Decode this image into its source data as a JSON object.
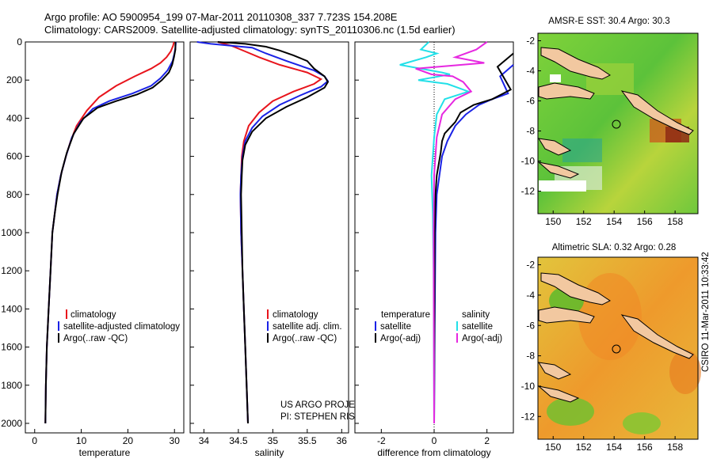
{
  "figure": {
    "title_line1": "Argo profile: AO 5900954_199 07-Mar-2011 20110308_337 7.723S 154.208E",
    "title_line2": "Climatology: CARS2009. Satellite-adjusted climatology: synTS_20110306.nc (1.5d earlier)",
    "credit_line1": "US ARGO PROJECT",
    "credit_line2": "PI: STEPHEN RISER",
    "timestamp": "CSIRO 11-Mar-2011 10:33:42"
  },
  "colors": {
    "climatology": "#e8141c",
    "satellite": "#1a22e6",
    "argo": "#000000",
    "salinity_satellite": "#22e0e8",
    "salinity_argo": "#e628e0"
  },
  "chart_data": [
    {
      "type": "line",
      "id": "temperature",
      "xlabel": "temperature",
      "ylabel": "depth",
      "xlim": [
        -2,
        32
      ],
      "ylim": [
        2050,
        0
      ],
      "xticks": [
        0,
        10,
        20,
        30
      ],
      "yticks": [
        0,
        200,
        400,
        600,
        800,
        1000,
        1200,
        1400,
        1600,
        1800,
        2000
      ],
      "legend": [
        "climatology",
        "satellite-adjusted climatology",
        "Argo(..raw -QC)"
      ],
      "series": [
        {
          "name": "climatology",
          "color": "climatology",
          "points": [
            [
              29.9,
              0
            ],
            [
              29.7,
              20
            ],
            [
              29.2,
              50
            ],
            [
              28.3,
              80
            ],
            [
              27.0,
              110
            ],
            [
              25.0,
              140
            ],
            [
              21.5,
              180
            ],
            [
              17.5,
              230
            ],
            [
              13.8,
              290
            ],
            [
              11.2,
              360
            ],
            [
              9.0,
              440
            ],
            [
              7.7,
              520
            ],
            [
              6.7,
              600
            ],
            [
              5.6,
              700
            ],
            [
              4.8,
              800
            ],
            [
              4.3,
              900
            ],
            [
              3.8,
              1000
            ],
            [
              3.4,
              1200
            ],
            [
              3.0,
              1400
            ],
            [
              2.6,
              1600
            ],
            [
              2.4,
              1800
            ],
            [
              2.3,
              2000
            ]
          ]
        },
        {
          "name": "satellite-adjusted climatology",
          "color": "satellite",
          "points": [
            [
              30.3,
              0
            ],
            [
              30.2,
              30
            ],
            [
              30.0,
              60
            ],
            [
              29.6,
              100
            ],
            [
              28.5,
              150
            ],
            [
              27.0,
              190
            ],
            [
              25.0,
              230
            ],
            [
              21.0,
              270
            ],
            [
              16.0,
              310
            ],
            [
              12.5,
              350
            ],
            [
              9.8,
              420
            ],
            [
              8.0,
              500
            ],
            [
              6.7,
              600
            ],
            [
              5.6,
              700
            ],
            [
              4.8,
              800
            ],
            [
              4.3,
              900
            ],
            [
              3.8,
              1000
            ],
            [
              3.4,
              1200
            ],
            [
              3.0,
              1400
            ],
            [
              2.6,
              1600
            ],
            [
              2.4,
              1800
            ],
            [
              2.3,
              2000
            ]
          ]
        },
        {
          "name": "Argo(..raw -QC)",
          "color": "argo",
          "points": [
            [
              30.2,
              0
            ],
            [
              30.2,
              40
            ],
            [
              29.9,
              80
            ],
            [
              29.5,
              120
            ],
            [
              28.8,
              160
            ],
            [
              27.3,
              200
            ],
            [
              25.3,
              240
            ],
            [
              22.0,
              275
            ],
            [
              17.5,
              310
            ],
            [
              13.5,
              345
            ],
            [
              10.5,
              400
            ],
            [
              8.4,
              480
            ],
            [
              6.9,
              580
            ],
            [
              5.8,
              680
            ],
            [
              4.9,
              800
            ],
            [
              4.3,
              900
            ],
            [
              3.8,
              1000
            ],
            [
              3.4,
              1200
            ],
            [
              3.0,
              1400
            ],
            [
              2.6,
              1600
            ],
            [
              2.4,
              1800
            ],
            [
              2.3,
              2000
            ]
          ]
        }
      ]
    },
    {
      "type": "line",
      "id": "salinity",
      "xlabel": "salinity",
      "ylabel": "depth",
      "xlim": [
        33.8,
        36.1
      ],
      "ylim": [
        2050,
        0
      ],
      "xticks": [
        34,
        34.5,
        35,
        35.5,
        36
      ],
      "legend": [
        "climatology",
        "satellite adj. clim.",
        "Argo(..raw -QC)"
      ],
      "series": [
        {
          "name": "climatology",
          "color": "climatology",
          "points": [
            [
              34.2,
              0
            ],
            [
              34.4,
              20
            ],
            [
              34.6,
              50
            ],
            [
              34.8,
              80
            ],
            [
              35.1,
              120
            ],
            [
              35.5,
              160
            ],
            [
              35.7,
              195
            ],
            [
              35.6,
              220
            ],
            [
              35.3,
              260
            ],
            [
              35.0,
              310
            ],
            [
              34.8,
              370
            ],
            [
              34.65,
              440
            ],
            [
              34.58,
              520
            ],
            [
              34.55,
              600
            ],
            [
              34.54,
              700
            ],
            [
              34.53,
              800
            ],
            [
              34.54,
              1000
            ],
            [
              34.56,
              1200
            ],
            [
              34.58,
              1400
            ],
            [
              34.6,
              1600
            ],
            [
              34.62,
              1800
            ],
            [
              34.64,
              2000
            ]
          ]
        },
        {
          "name": "satellite adj. clim.",
          "color": "satellite",
          "points": [
            [
              33.9,
              0
            ],
            [
              34.1,
              10
            ],
            [
              34.7,
              30
            ],
            [
              34.9,
              60
            ],
            [
              35.2,
              100
            ],
            [
              35.6,
              150
            ],
            [
              35.75,
              180
            ],
            [
              35.8,
              205
            ],
            [
              35.7,
              235
            ],
            [
              35.4,
              280
            ],
            [
              35.1,
              330
            ],
            [
              34.85,
              390
            ],
            [
              34.7,
              450
            ],
            [
              34.6,
              520
            ],
            [
              34.56,
              600
            ],
            [
              34.54,
              700
            ],
            [
              34.53,
              800
            ],
            [
              34.54,
              1000
            ],
            [
              34.56,
              1200
            ],
            [
              34.58,
              1400
            ],
            [
              34.6,
              1600
            ],
            [
              34.62,
              1800
            ],
            [
              34.64,
              2000
            ]
          ]
        },
        {
          "name": "Argo(..raw -QC)",
          "color": "argo",
          "points": [
            [
              34.2,
              0
            ],
            [
              34.6,
              10
            ],
            [
              34.9,
              25
            ],
            [
              35.1,
              45
            ],
            [
              35.3,
              70
            ],
            [
              35.5,
              100
            ],
            [
              35.6,
              140
            ],
            [
              35.75,
              180
            ],
            [
              35.8,
              210
            ],
            [
              35.75,
              240
            ],
            [
              35.5,
              290
            ],
            [
              35.2,
              340
            ],
            [
              34.9,
              400
            ],
            [
              34.7,
              470
            ],
            [
              34.6,
              540
            ],
            [
              34.56,
              620
            ],
            [
              34.55,
              700
            ],
            [
              34.54,
              800
            ],
            [
              34.55,
              1000
            ],
            [
              34.56,
              1200
            ],
            [
              34.58,
              1400
            ],
            [
              34.6,
              1600
            ],
            [
              34.62,
              1800
            ],
            [
              34.64,
              2000
            ]
          ]
        }
      ]
    },
    {
      "type": "line",
      "id": "difference",
      "xlabel": "difference from climatology",
      "ylabel": "depth",
      "xlim": [
        -3,
        3
      ],
      "ylim": [
        2050,
        0
      ],
      "xticks": [
        -2,
        0,
        2
      ],
      "legend_temperature_title": "temperature",
      "legend_salinity_title": "salinity",
      "legend": [
        "satellite",
        "Argo(-adj)",
        "satellite",
        "Argo(-adj)"
      ],
      "series": [
        {
          "name": "temperature satellite",
          "color": "satellite",
          "points": [
            [
              3.0,
              120
            ],
            [
              2.5,
              180
            ],
            [
              2.8,
              270
            ],
            [
              2.2,
              300
            ],
            [
              1.7,
              330
            ],
            [
              1.2,
              380
            ],
            [
              0.8,
              440
            ],
            [
              0.5,
              520
            ],
            [
              0.3,
              600
            ],
            [
              0.1,
              800
            ],
            [
              0.05,
              1000
            ],
            [
              0.02,
              1500
            ],
            [
              0,
              2000
            ]
          ]
        },
        {
          "name": "temperature Argo(-adj)",
          "color": "argo",
          "points": [
            [
              3.0,
              60
            ],
            [
              2.4,
              130
            ],
            [
              2.9,
              250
            ],
            [
              2.2,
              300
            ],
            [
              1.5,
              330
            ],
            [
              1.0,
              370
            ],
            [
              0.8,
              420
            ],
            [
              0.4,
              480
            ],
            [
              0.3,
              520
            ],
            [
              0.25,
              580
            ],
            [
              0.1,
              700
            ],
            [
              0.05,
              800
            ],
            [
              0.02,
              1000
            ],
            [
              0,
              2000
            ]
          ]
        },
        {
          "name": "salinity satellite",
          "color": "salinity_satellite",
          "points": [
            [
              -0.2,
              0
            ],
            [
              -0.5,
              40
            ],
            [
              0.1,
              60
            ],
            [
              -0.3,
              80
            ],
            [
              -1.3,
              120
            ],
            [
              0.3,
              160
            ],
            [
              0.6,
              170
            ],
            [
              -0.6,
              200
            ],
            [
              0.5,
              220
            ],
            [
              0.9,
              240
            ],
            [
              1.3,
              260
            ],
            [
              0.4,
              300
            ],
            [
              0.1,
              380
            ],
            [
              0.0,
              500
            ],
            [
              -0.1,
              700
            ],
            [
              -0.05,
              900
            ],
            [
              -0.02,
              1200
            ],
            [
              0,
              2000
            ]
          ]
        },
        {
          "name": "salinity Argo(-adj)",
          "color": "salinity_argo",
          "points": [
            [
              2.0,
              0
            ],
            [
              1.6,
              40
            ],
            [
              0.8,
              80
            ],
            [
              1.9,
              110
            ],
            [
              -0.7,
              140
            ],
            [
              -0.1,
              170
            ],
            [
              0.7,
              180
            ],
            [
              1.1,
              210
            ],
            [
              1.4,
              260
            ],
            [
              0.8,
              300
            ],
            [
              0.3,
              380
            ],
            [
              0.1,
              500
            ],
            [
              0.0,
              700
            ],
            [
              -0.02,
              1000
            ],
            [
              0,
              2000
            ]
          ]
        }
      ]
    },
    {
      "type": "heatmap",
      "id": "sst-map",
      "title": "AMSR-E SST: 30.4 Argo: 30.3",
      "xlim": [
        149,
        159.5
      ],
      "ylim": [
        -13.5,
        -1.5
      ],
      "xticks": [
        150,
        152,
        154,
        156,
        158
      ],
      "yticks": [
        -2,
        -4,
        -6,
        -8,
        -10,
        -12
      ],
      "profile_location": [
        154.208,
        -7.723
      ]
    },
    {
      "type": "heatmap",
      "id": "sla-map",
      "title": "Altimetric SLA: 0.32 Argo: 0.28",
      "xlim": [
        149,
        159.5
      ],
      "ylim": [
        -13.5,
        -1.5
      ],
      "xticks": [
        150,
        152,
        154,
        156,
        158
      ],
      "yticks": [
        -2,
        -4,
        -6,
        -8,
        -10,
        -12
      ],
      "profile_location": [
        154.208,
        -7.723
      ]
    }
  ]
}
